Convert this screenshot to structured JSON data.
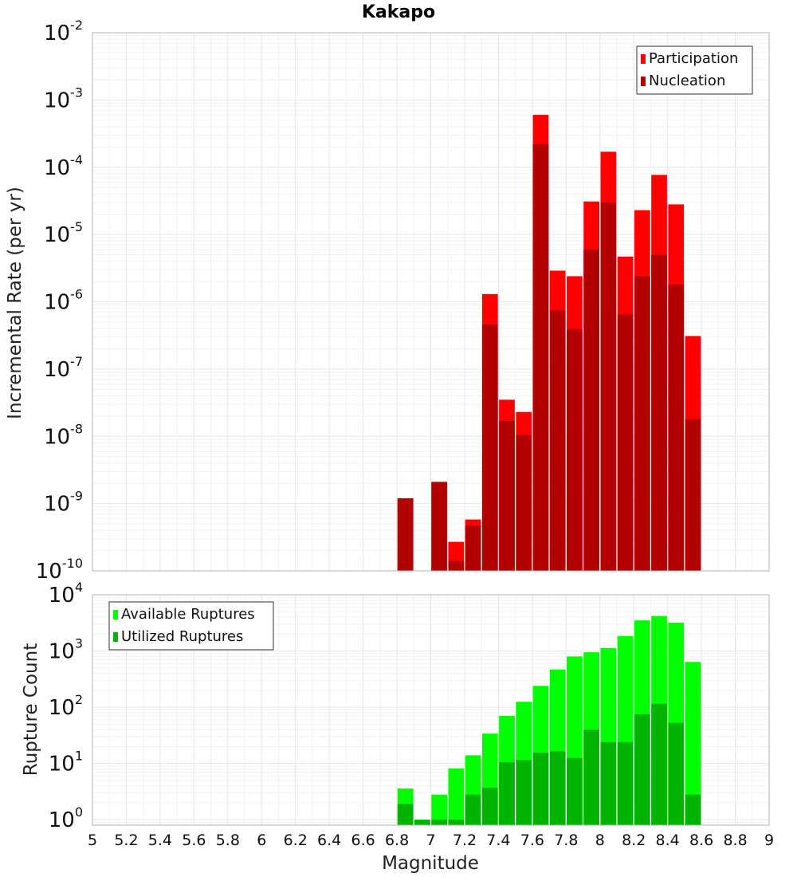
{
  "chart_data": [
    {
      "type": "bar",
      "title": "Kakapo",
      "xlabel": "",
      "ylabel": "Incremental Rate (per yr)",
      "y_scale": "log",
      "ylim": [
        1e-10,
        0.01
      ],
      "y_ticks": [
        "10^-10",
        "10^-9",
        "10^-8",
        "10^-7",
        "10^-6",
        "10^-5",
        "10^-4",
        "10^-3",
        "10^-2"
      ],
      "legend_position": "top-right",
      "x": [
        6.85,
        6.95,
        7.05,
        7.15,
        7.25,
        7.35,
        7.45,
        7.55,
        7.65,
        7.75,
        7.85,
        7.95,
        8.05,
        8.15,
        8.25,
        8.35,
        8.45,
        8.55
      ],
      "series": [
        {
          "name": "Participation",
          "color": "#ff0000",
          "values": [
            1.2e-09,
            null,
            2.1e-09,
            2.7e-10,
            5.8e-10,
            1.3e-06,
            3.5e-08,
            2.3e-08,
            0.0006,
            2.9e-06,
            2.4e-06,
            3.1e-05,
            0.00017,
            4.7e-06,
            2.3e-05,
            7.7e-05,
            2.8e-05,
            3.1e-07
          ]
        },
        {
          "name": "Nucleation",
          "color": "#b30000",
          "values": [
            1.2e-09,
            null,
            2.1e-09,
            1.4e-10,
            4.7e-10,
            4.6e-07,
            1.7e-08,
            1.05e-08,
            0.00022,
            7.5e-07,
            3.9e-07,
            6e-06,
            3e-05,
            6.5e-07,
            2.4e-06,
            5e-06,
            1.8e-06,
            1.8e-08
          ]
        }
      ]
    },
    {
      "type": "bar",
      "title": "",
      "xlabel": "Magnitude",
      "ylabel": "Rupture Count",
      "y_scale": "log",
      "ylim": [
        0.8,
        10000
      ],
      "y_ticks": [
        "10^0",
        "10^1",
        "10^2",
        "10^3",
        "10^4"
      ],
      "xlim": [
        5,
        9
      ],
      "x_ticks": [
        "5",
        "5.2",
        "5.4",
        "5.6",
        "5.8",
        "6",
        "6.2",
        "6.4",
        "6.6",
        "6.8",
        "7",
        "7.2",
        "7.4",
        "7.6",
        "7.8",
        "8",
        "8.2",
        "8.4",
        "8.6",
        "8.8",
        "9"
      ],
      "legend_position": "top-left",
      "x": [
        6.85,
        6.95,
        7.05,
        7.15,
        7.25,
        7.35,
        7.45,
        7.55,
        7.65,
        7.75,
        7.85,
        7.95,
        8.05,
        8.15,
        8.25,
        8.35,
        8.45,
        8.55
      ],
      "series": [
        {
          "name": "Available Ruptures",
          "color": "#00ff00",
          "values": [
            3.6,
            1,
            2.8,
            8.2,
            14,
            34,
            70,
            125,
            240,
            470,
            800,
            950,
            1130,
            1850,
            3500,
            4200,
            3200,
            640
          ]
        },
        {
          "name": "Utilized Ruptures",
          "color": "#00b300",
          "values": [
            1.9,
            1,
            1,
            1,
            2.8,
            3.7,
            10.5,
            11.5,
            15.5,
            16.5,
            12.5,
            40,
            24,
            24,
            75,
            115,
            53,
            2.8
          ]
        }
      ]
    }
  ]
}
